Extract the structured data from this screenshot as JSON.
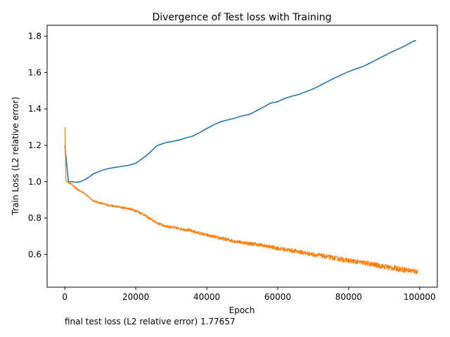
{
  "chart_data": {
    "type": "line",
    "title": "Divergence of Test loss with Training",
    "xlabel": "Epoch",
    "ylabel": "Train Loss (L2 relative error)",
    "xlim": [
      -5000,
      105000
    ],
    "ylim": [
      0.42,
      1.86
    ],
    "xticks": [
      0,
      20000,
      40000,
      60000,
      80000,
      100000
    ],
    "yticks": [
      0.6,
      0.8,
      1.0,
      1.2,
      1.4,
      1.6,
      1.8
    ],
    "xtick_labels": [
      "0",
      "20000",
      "40000",
      "60000",
      "80000",
      "100000"
    ],
    "ytick_labels": [
      "0.6",
      "0.8",
      "1.0",
      "1.2",
      "1.4",
      "1.6",
      "1.8"
    ],
    "grid": false,
    "series": [
      {
        "color": "#1f77b4",
        "noisy": false,
        "x": [
          0,
          1000,
          2000,
          3000,
          4000,
          5000,
          6000,
          7000,
          8000,
          9000,
          10000,
          12000,
          14000,
          16000,
          18000,
          19000,
          20000,
          21000,
          22000,
          23000,
          24000,
          25000,
          26000,
          27000,
          28000,
          29000,
          30000,
          32000,
          34000,
          36000,
          38000,
          40000,
          42000,
          44000,
          46000,
          48000,
          50000,
          52000,
          54000,
          56000,
          58000,
          60000,
          62000,
          64000,
          66000,
          68000,
          70000,
          72000,
          74000,
          76000,
          78000,
          80000,
          82000,
          84000,
          86000,
          88000,
          90000,
          92000,
          94000,
          96000,
          98000,
          99000
        ],
        "y": [
          1.2,
          1.0,
          1.0,
          0.997,
          0.998,
          1.005,
          1.015,
          1.028,
          1.042,
          1.051,
          1.059,
          1.071,
          1.078,
          1.084,
          1.09,
          1.095,
          1.102,
          1.115,
          1.13,
          1.143,
          1.162,
          1.18,
          1.198,
          1.205,
          1.212,
          1.217,
          1.22,
          1.228,
          1.24,
          1.25,
          1.27,
          1.292,
          1.313,
          1.33,
          1.34,
          1.35,
          1.362,
          1.37,
          1.39,
          1.41,
          1.432,
          1.44,
          1.458,
          1.47,
          1.48,
          1.495,
          1.51,
          1.53,
          1.55,
          1.57,
          1.588,
          1.605,
          1.62,
          1.633,
          1.652,
          1.672,
          1.692,
          1.712,
          1.73,
          1.748,
          1.77,
          1.777
        ]
      },
      {
        "color": "#ff7f0e",
        "noisy": true,
        "x": [
          0,
          300,
          600,
          1000,
          2000,
          3000,
          4000,
          5000,
          6000,
          7000,
          8000,
          10000,
          12000,
          14000,
          16000,
          18000,
          20000,
          22000,
          24000,
          26000,
          28000,
          30000,
          35000,
          40000,
          45000,
          50000,
          55000,
          60000,
          65000,
          70000,
          75000,
          80000,
          85000,
          90000,
          95000,
          99500
        ],
        "y": [
          1.3,
          1.01,
          0.998,
          0.995,
          0.985,
          0.965,
          0.952,
          0.943,
          0.93,
          0.91,
          0.895,
          0.882,
          0.872,
          0.865,
          0.858,
          0.852,
          0.84,
          0.822,
          0.796,
          0.773,
          0.758,
          0.75,
          0.733,
          0.706,
          0.684,
          0.666,
          0.652,
          0.634,
          0.618,
          0.6,
          0.583,
          0.566,
          0.551,
          0.533,
          0.518,
          0.505
        ]
      }
    ]
  },
  "annotation": "final test loss (L2 relative error) 1.77657"
}
